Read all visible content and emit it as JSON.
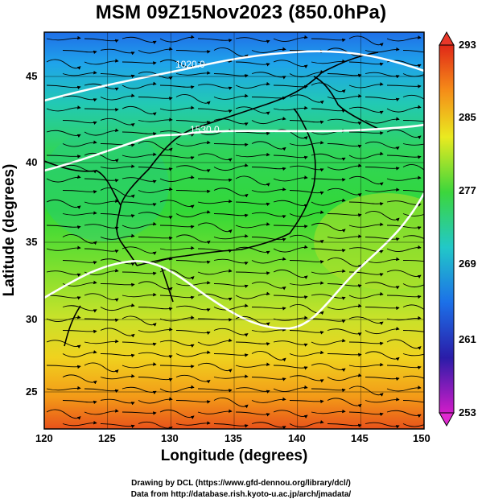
{
  "title": "MSM 09Z15Nov2023 (850.0hPa)",
  "axes": {
    "xlabel": "Longitude (degrees)",
    "ylabel": "Latitude  (degrees)",
    "xticks": [
      "120",
      "125",
      "130",
      "135",
      "140",
      "145",
      "150"
    ],
    "yticks": [
      "45",
      "40",
      "35",
      "30",
      "25"
    ]
  },
  "colorbar": {
    "ticks": [
      "293",
      "285",
      "277",
      "269",
      "261",
      "253"
    ]
  },
  "contours": [
    {
      "label": "1020.0"
    },
    {
      "label": "1530.0"
    }
  ],
  "credits": {
    "line1": "Drawing by DCL (https://www.gfd-dennou.org/library/dcl/)",
    "line2": "Data from http://database.rish.kyoto-u.ac.jp/arch/jmadata/"
  },
  "colors": {
    "warm": "#e0401a",
    "mid": "#33d93d",
    "cool": "#1a7cf0",
    "contour": "#ffffff"
  }
}
